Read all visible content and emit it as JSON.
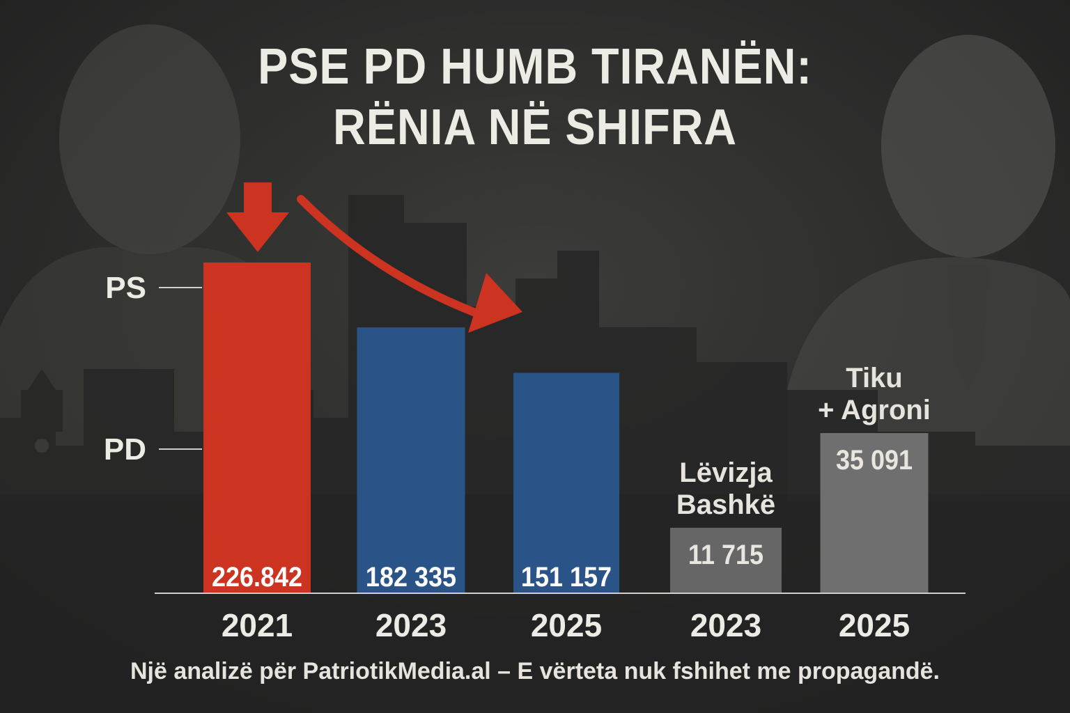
{
  "title_lines": [
    "PSE PD HUMB TIRANËN:",
    "RËNIA NË SHIFRA"
  ],
  "footer": "Një analizë për PatriotikMedia.al – E vërteta nuk fshihet me propagandë.",
  "colors": {
    "background": "#2b2b2b",
    "text": "#ecebe4",
    "red": "#cc3320",
    "blue": "#2a5487",
    "gray": "#666666",
    "gray_light": "#6f6f6f",
    "axis": "#cfcfcf"
  },
  "chart_data": {
    "type": "bar",
    "title": "PSE PD HUMB TIRANËN: RËNIA NË SHIFRA",
    "ylim": [
      0,
      240000
    ],
    "y_markers": [
      {
        "label": "PS",
        "value": 226842
      },
      {
        "label": "PD",
        "value": 110000
      }
    ],
    "bars": [
      {
        "category": "2021",
        "value": 226842,
        "value_label": "226.842",
        "color": "red"
      },
      {
        "category": "2023",
        "value": 182335,
        "value_label": "182 335",
        "color": "blue"
      },
      {
        "category": "2025",
        "value": 151157,
        "value_label": "151 157",
        "color": "blue"
      },
      {
        "category": "2023",
        "value": 11715,
        "value_label": "11 715",
        "color": "gray",
        "group_label": [
          "Lëvizja",
          "Bashkë"
        ]
      },
      {
        "category": "2025",
        "value": 35091,
        "value_label": "35 091",
        "color": "gray_light",
        "group_label": [
          "Tiku",
          "+ Agroni"
        ]
      }
    ],
    "annotations": [
      "down-arrow above 2021 bar",
      "curved arrow from 2021 toward 2025"
    ],
    "grid": false
  }
}
